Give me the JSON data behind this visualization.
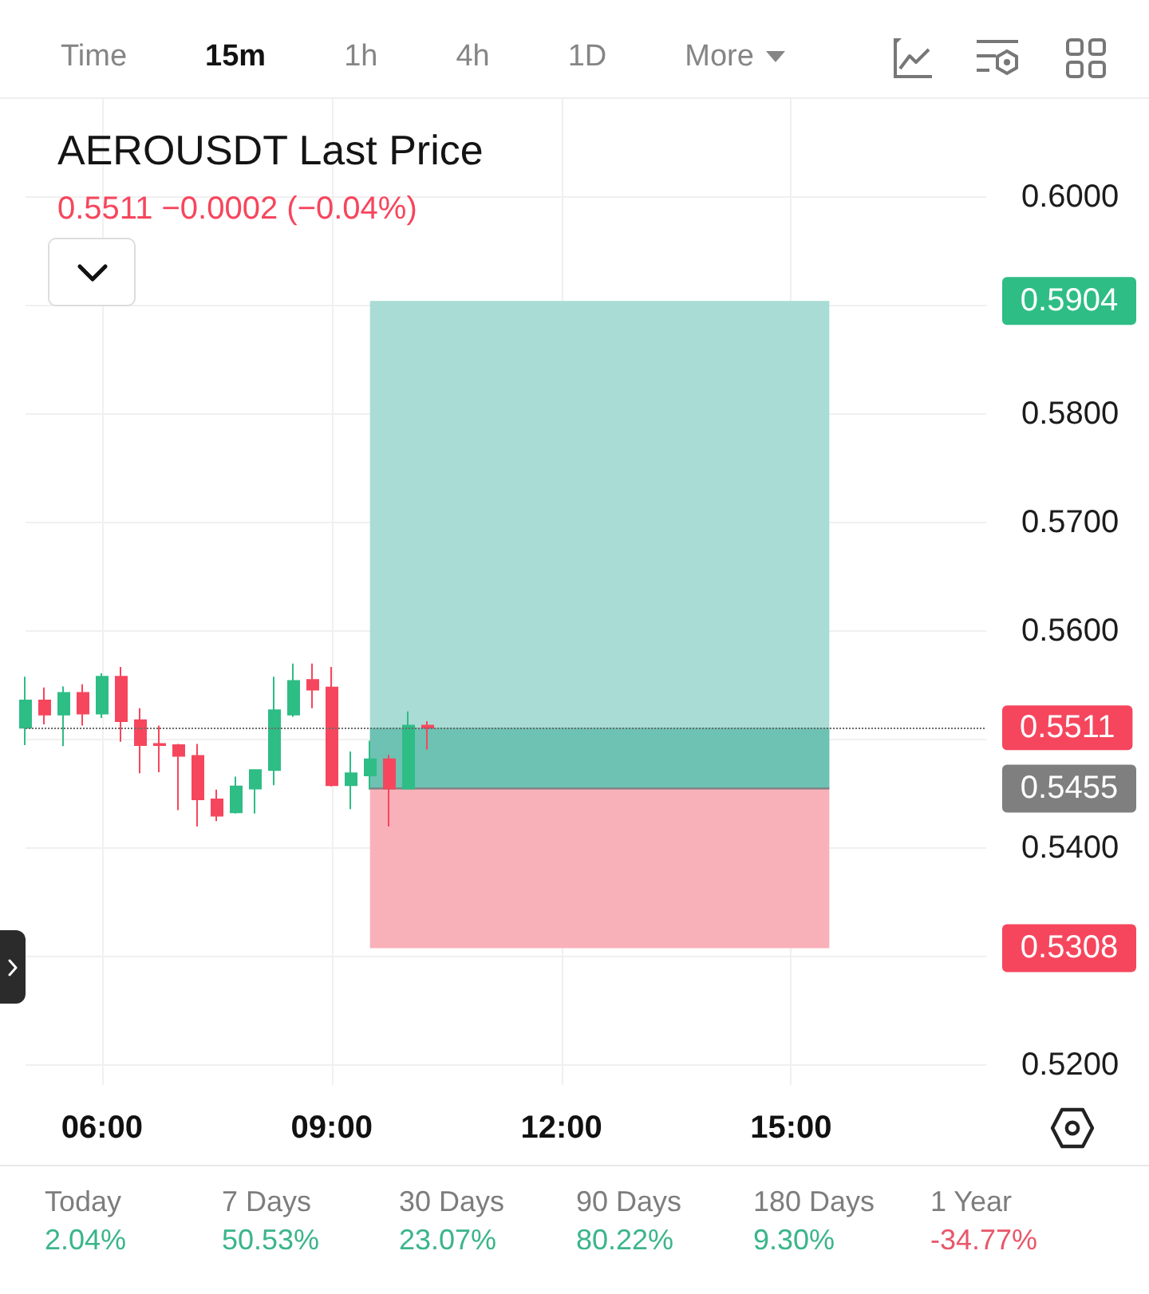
{
  "chart_data": [
    {
      "type": "other",
      "annotations": [
        "Time",
        "15m",
        "1h",
        "4h",
        "1D",
        "More"
      ]
    },
    {
      "type": "candlestick",
      "title": "AEROUSDT Last Price",
      "subtitle": "0.5511 −0.0002 (−0.04%)",
      "x": [
        5,
        5.25,
        5.5,
        5.75,
        6,
        6.25,
        6.5,
        6.75,
        7,
        7.25,
        7.5,
        7.75,
        8,
        8.25,
        8.5,
        8.75,
        9,
        9.25,
        9.5,
        9.75,
        10,
        10.25
      ],
      "ohlc": [
        [
          0.5511,
          0.5558,
          0.5495,
          0.5536
        ],
        [
          0.5536,
          0.5548,
          0.5514,
          0.5523
        ],
        [
          0.5523,
          0.5549,
          0.5494,
          0.5543
        ],
        [
          0.5543,
          0.5551,
          0.5513,
          0.5524
        ],
        [
          0.5524,
          0.5561,
          0.552,
          0.5558
        ],
        [
          0.5558,
          0.5567,
          0.5498,
          0.5517
        ],
        [
          0.5518,
          0.5529,
          0.5469,
          0.5495
        ],
        [
          0.5496,
          0.5513,
          0.547,
          0.5495
        ],
        [
          0.5495,
          0.5496,
          0.5435,
          0.5485
        ],
        [
          0.5485,
          0.5496,
          0.542,
          0.5445
        ],
        [
          0.5445,
          0.5454,
          0.5425,
          0.543
        ],
        [
          0.5433,
          0.5466,
          0.5432,
          0.5457
        ],
        [
          0.5455,
          0.5472,
          0.5432,
          0.5472
        ],
        [
          0.5472,
          0.5558,
          0.5458,
          0.5527
        ],
        [
          0.5523,
          0.557,
          0.5521,
          0.5554
        ],
        [
          0.5555,
          0.557,
          0.5529,
          0.5546
        ],
        [
          0.5548,
          0.5567,
          0.5457,
          0.5458
        ],
        [
          0.5458,
          0.5489,
          0.5436,
          0.5469
        ],
        [
          0.5467,
          0.5499,
          0.5454,
          0.5482
        ],
        [
          0.5482,
          0.5486,
          0.542,
          0.5455
        ],
        [
          0.5455,
          0.5526,
          0.5455,
          0.5513
        ],
        [
          0.5513,
          0.5517,
          0.5491,
          0.5511
        ]
      ],
      "colors": [
        "#2ebd85",
        "#f6465d",
        "#2ebd85",
        "#f6465d",
        "#2ebd85",
        "#f6465d",
        "#f6465d",
        "#f6465d",
        "#f6465d",
        "#f6465d",
        "#f6465d",
        "#2ebd85",
        "#2ebd85",
        "#2ebd85",
        "#2ebd85",
        "#f6465d",
        "#f6465d",
        "#2ebd85",
        "#2ebd85",
        "#f6465d",
        "#2ebd85",
        "#f6465d"
      ],
      "series": [
        {
          "type": "line",
          "x": [
            9.5,
            15.5
          ],
          "values": [
            0.5455,
            0.5455
          ],
          "color": "#7f7f7f"
        }
      ],
      "bands": [
        {
          "axis": "y",
          "from": 0.5455,
          "to": 0.5904,
          "color": "#a9dcd5"
        },
        {
          "axis": "y",
          "from": 0.5308,
          "to": 0.5455,
          "color": "#f9b1b9"
        },
        {
          "axis": "y",
          "from": 0.5455,
          "to": 0.5511,
          "color": "#6dc2b3"
        }
      ],
      "xlim": [
        5,
        17.55
      ],
      "xticks": [
        {
          "value": 6,
          "label": "06:00"
        },
        {
          "value": 9,
          "label": "09:00"
        },
        {
          "value": 12,
          "label": "12:00"
        },
        {
          "value": 15,
          "label": "15:00"
        }
      ],
      "ylim": [
        0.5182,
        0.609
      ],
      "yticks": [
        {
          "value": 0.52,
          "label": "0.5200"
        },
        {
          "value": 0.53,
          "label": null
        },
        {
          "value": 0.54,
          "label": "0.5400"
        },
        {
          "value": 0.55,
          "label": null
        },
        {
          "value": 0.56,
          "label": "0.5600"
        },
        {
          "value": 0.57,
          "label": "0.5700"
        },
        {
          "value": 0.58,
          "label": "0.5800"
        },
        {
          "value": 0.59,
          "label": null
        },
        {
          "value": 0.6,
          "label": "0.6000"
        }
      ],
      "grid": true,
      "ref_lines": [
        {
          "axis": "y",
          "value": 0.5511,
          "label": "0.5511",
          "color": "#6b6b6b",
          "line_style": "dotted"
        }
      ],
      "annotations": [
        "0.5904",
        "0.5308",
        "0.5455"
      ]
    },
    {
      "type": "other",
      "annotations": [
        "Today",
        "2.04%",
        "7 Days",
        "50.53%",
        "30 Days",
        "23.07%",
        "90 Days",
        "80.22%",
        "180 Days",
        "9.30%",
        "1 Year",
        "-34.77%"
      ]
    }
  ]
}
